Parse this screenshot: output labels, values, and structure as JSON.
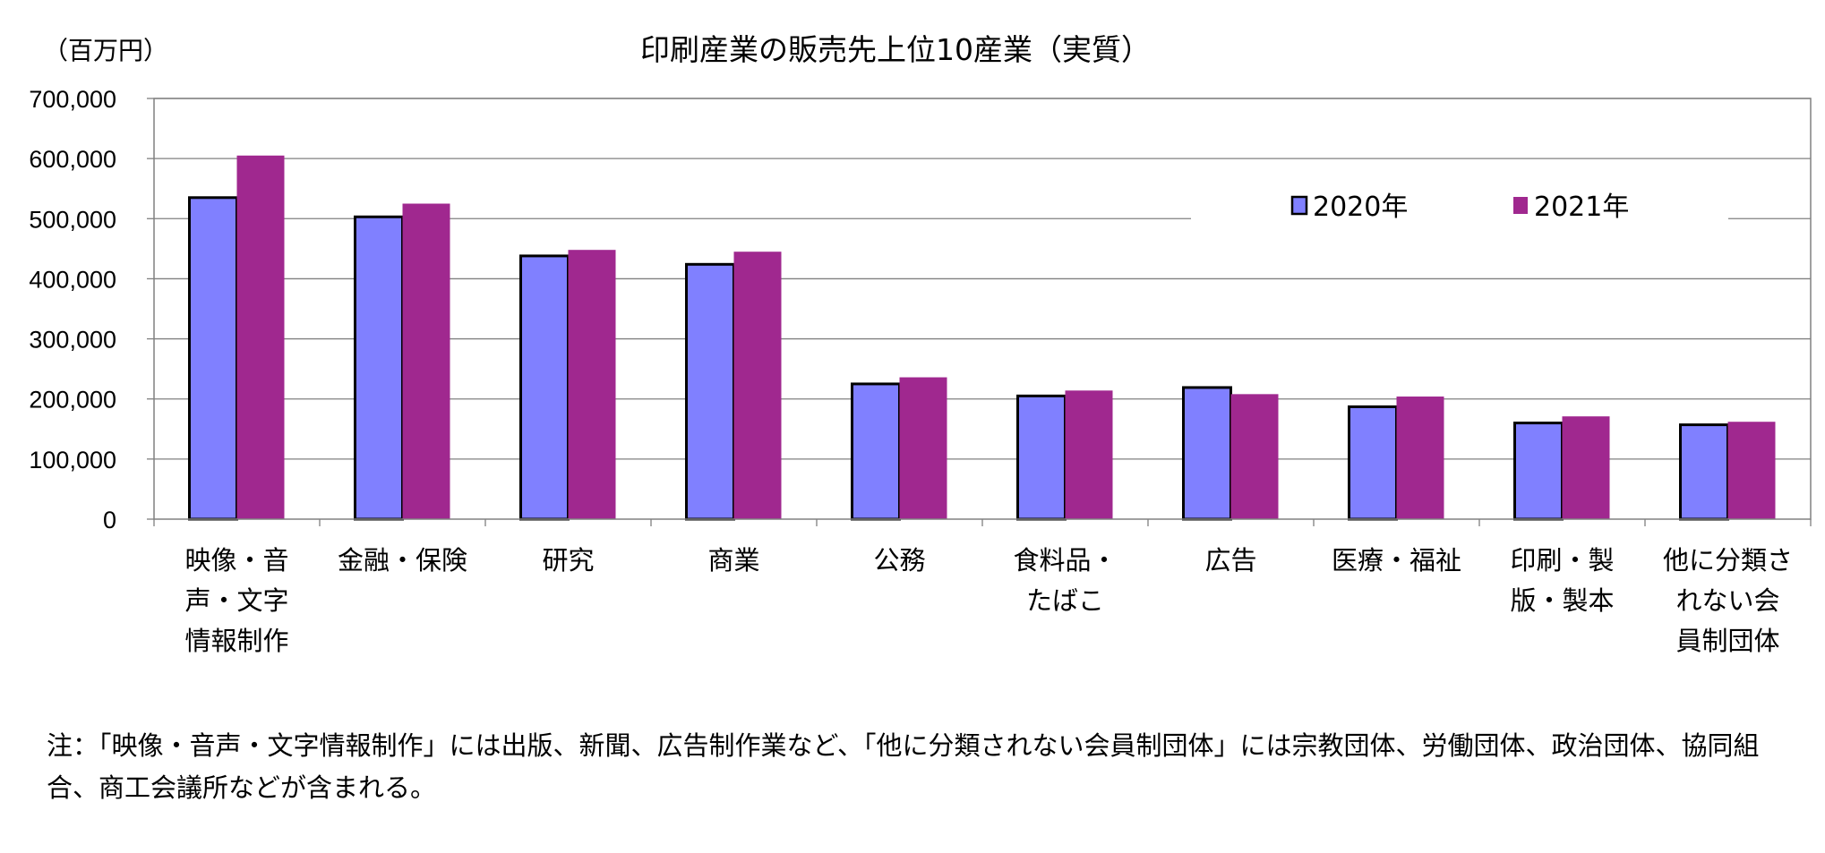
{
  "chart_data": {
    "type": "bar",
    "title": "印刷産業の販売先上位10産業（実質）",
    "unit_label": "（百万円）",
    "categories": [
      [
        "映像・音",
        "声・文字",
        "情報制作"
      ],
      [
        "金融・保険"
      ],
      [
        "研究"
      ],
      [
        "商業"
      ],
      [
        "公務"
      ],
      [
        "食料品・",
        "たばこ"
      ],
      [
        "広告"
      ],
      [
        "医療・福祉"
      ],
      [
        "印刷・製",
        "版・製本"
      ],
      [
        "他に分類さ",
        "れない会",
        "員制団体"
      ]
    ],
    "series": [
      {
        "name": "2020年",
        "color": "#8080ff",
        "values": [
          535000,
          503000,
          438000,
          424000,
          225000,
          205000,
          219000,
          187000,
          160000,
          157000
        ]
      },
      {
        "name": "2021年",
        "color": "#a0288f",
        "values": [
          605000,
          525000,
          448000,
          445000,
          236000,
          214000,
          208000,
          204000,
          171000,
          162000
        ]
      }
    ],
    "ylim": [
      0,
      700000
    ],
    "yticks": [
      0,
      100000,
      200000,
      300000,
      400000,
      500000,
      600000,
      700000
    ],
    "ytick_labels": [
      "0",
      "100,000",
      "200,000",
      "300,000",
      "400,000",
      "500,000",
      "600,000",
      "700,000"
    ],
    "grid": true,
    "legend_position": "top-right"
  },
  "note": "注：「映像・音声・文字情報制作」には出版、新聞、広告制作業など、「他に分類されない会員制団体」には宗教団体、労働団体、政治団体、協同組合、商工会議所などが含まれる。"
}
